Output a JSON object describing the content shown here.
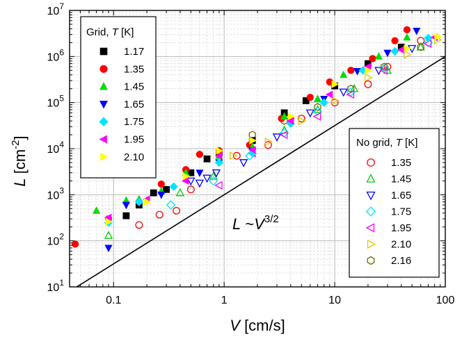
{
  "chart_data": {
    "type": "scatter",
    "x_scale": "log",
    "y_scale": "log",
    "xlim": [
      0.04,
      100
    ],
    "ylim": [
      10,
      10000000
    ],
    "grid": true,
    "x_tick_labels": [
      {
        "value": 0.1,
        "label": "0.1"
      },
      {
        "value": 1,
        "label": "1"
      },
      {
        "value": 10,
        "label": "10"
      },
      {
        "value": 100,
        "label": "100"
      }
    ],
    "y_tick_labels": [
      {
        "value": 10,
        "base": "10",
        "exp": "1"
      },
      {
        "value": 100,
        "base": "10",
        "exp": "2"
      },
      {
        "value": 1000,
        "base": "10",
        "exp": "3"
      },
      {
        "value": 10000,
        "base": "10",
        "exp": "4"
      },
      {
        "value": 100000,
        "base": "10",
        "exp": "5"
      },
      {
        "value": 1000000,
        "base": "10",
        "exp": "6"
      },
      {
        "value": 10000000,
        "base": "10",
        "exp": "7"
      }
    ],
    "xlabel": {
      "var": "V",
      "unit": " [cm/s]"
    },
    "ylabel": {
      "var": "L",
      "unit_pre": " [cm",
      "sup": "-2",
      "unit_post": "]"
    },
    "annotation": {
      "text_var": "L",
      "text_mid": " ~",
      "text_var2": "V",
      "sup": "3/2",
      "x": 1.2,
      "y": 320
    },
    "reference_line": {
      "name": "L ~ V^3/2",
      "x": [
        0.04,
        100
      ],
      "y": [
        8,
        1000000
      ]
    },
    "legend_grid": {
      "title_pre": "Grid, ",
      "title_var": "T",
      "title_post": " [K]",
      "position": "top-left",
      "entries": [
        {
          "label": "1.17",
          "marker": "square",
          "color": "#000000",
          "filled": true
        },
        {
          "label": "1.35",
          "marker": "circle",
          "color": "#ff0000",
          "filled": true
        },
        {
          "label": "1.45",
          "marker": "triangle-up",
          "color": "#00dd00",
          "filled": true
        },
        {
          "label": "1.65",
          "marker": "triangle-down",
          "color": "#0000ff",
          "filled": true
        },
        {
          "label": "1.75",
          "marker": "diamond",
          "color": "#00e5ff",
          "filled": true
        },
        {
          "label": "1.95",
          "marker": "triangle-left",
          "color": "#ff00ff",
          "filled": true
        },
        {
          "label": "2.10",
          "marker": "triangle-right",
          "color": "#ffff00",
          "filled": true
        }
      ]
    },
    "legend_nogrid": {
      "title_pre": "No grid, ",
      "title_var": "T",
      "title_post": " [K]",
      "position": "right",
      "entries": [
        {
          "label": "1.35",
          "marker": "circle",
          "color": "#ff0000",
          "filled": false
        },
        {
          "label": "1.45",
          "marker": "triangle-up",
          "color": "#00cc00",
          "filled": false
        },
        {
          "label": "1.65",
          "marker": "triangle-down",
          "color": "#0000ff",
          "filled": false
        },
        {
          "label": "1.75",
          "marker": "diamond",
          "color": "#00e5ff",
          "filled": false
        },
        {
          "label": "1.95",
          "marker": "triangle-left",
          "color": "#ff00ff",
          "filled": false
        },
        {
          "label": "2.10",
          "marker": "triangle-right",
          "color": "#e6c800",
          "filled": false
        },
        {
          "label": "2.16",
          "marker": "hexagon",
          "color": "#6b6b00",
          "filled": false
        }
      ]
    },
    "series": [
      {
        "name": "Grid 1.17",
        "group": "grid",
        "points": [
          [
            0.13,
            350
          ],
          [
            0.17,
            600
          ],
          [
            0.23,
            1100
          ],
          [
            0.3,
            1300
          ],
          [
            0.5,
            3000
          ],
          [
            0.7,
            6000
          ],
          [
            0.9,
            8000
          ],
          [
            1.8,
            15000
          ],
          [
            3.5,
            60000
          ],
          [
            5.5,
            110000
          ],
          [
            10,
            230000
          ],
          [
            20,
            700000
          ],
          [
            40,
            1600000
          ]
        ]
      },
      {
        "name": "Grid 1.35",
        "group": "grid",
        "points": [
          [
            0.045,
            85
          ],
          [
            0.09,
            300
          ],
          [
            0.17,
            700
          ],
          [
            0.27,
            1700
          ],
          [
            0.45,
            3500
          ],
          [
            0.6,
            7500
          ],
          [
            0.9,
            9000
          ],
          [
            1.7,
            12000
          ],
          [
            3.3,
            45000
          ],
          [
            6,
            130000
          ],
          [
            9,
            280000
          ],
          [
            14,
            500000
          ],
          [
            22,
            900000
          ],
          [
            35,
            2200000
          ],
          [
            45,
            3800000
          ]
        ]
      },
      {
        "name": "Grid 1.45",
        "group": "grid",
        "points": [
          [
            0.07,
            450
          ],
          [
            0.13,
            750
          ],
          [
            0.17,
            800
          ],
          [
            0.27,
            1200
          ],
          [
            0.45,
            3000
          ],
          [
            0.9,
            7000
          ],
          [
            1.8,
            11000
          ],
          [
            3.5,
            50000
          ],
          [
            7,
            120000
          ],
          [
            12,
            400000
          ],
          [
            25,
            1000000
          ],
          [
            45,
            2600000
          ]
        ]
      },
      {
        "name": "Grid 1.65",
        "group": "grid",
        "points": [
          [
            0.09,
            70
          ],
          [
            0.13,
            600
          ],
          [
            0.27,
            1000
          ],
          [
            0.6,
            3000
          ],
          [
            0.9,
            5000
          ],
          [
            1.8,
            9000
          ],
          [
            4,
            40000
          ],
          [
            8,
            120000
          ],
          [
            16,
            480000
          ],
          [
            30,
            1200000
          ],
          [
            55,
            3600000
          ]
        ]
      },
      {
        "name": "Grid 1.75",
        "group": "grid",
        "points": [
          [
            0.09,
            250
          ],
          [
            0.17,
            700
          ],
          [
            0.35,
            1500
          ],
          [
            0.9,
            5000
          ],
          [
            1.8,
            8000
          ],
          [
            4,
            35000
          ],
          [
            8,
            100000
          ],
          [
            18,
            500000
          ],
          [
            35,
            1300000
          ],
          [
            70,
            2500000
          ]
        ]
      },
      {
        "name": "Grid 1.95",
        "group": "grid",
        "points": [
          [
            0.09,
            320
          ],
          [
            0.2,
            800
          ],
          [
            0.45,
            2000
          ],
          [
            0.9,
            7000
          ],
          [
            1.8,
            9500
          ],
          [
            4,
            40000
          ],
          [
            9,
            150000
          ],
          [
            20,
            600000
          ],
          [
            40,
            1400000
          ],
          [
            80,
            2600000
          ]
        ]
      },
      {
        "name": "Grid 2.10",
        "group": "grid",
        "points": [
          [
            0.09,
            260
          ],
          [
            0.2,
            700
          ],
          [
            0.45,
            2500
          ],
          [
            0.9,
            9000
          ],
          [
            1.8,
            15000
          ],
          [
            4,
            50000
          ],
          [
            10,
            250000
          ],
          [
            20,
            500000
          ],
          [
            45,
            1500000
          ],
          [
            85,
            2700000
          ]
        ]
      },
      {
        "name": "No grid 1.35",
        "group": "nogrid",
        "points": [
          [
            0.17,
            220
          ],
          [
            0.26,
            370
          ],
          [
            0.37,
            450
          ],
          [
            0.5,
            1300
          ],
          [
            1.3,
            7000
          ],
          [
            2.5,
            12000
          ],
          [
            5,
            45000
          ],
          [
            10,
            100000
          ],
          [
            20,
            250000
          ],
          [
            30,
            600000
          ],
          [
            60,
            2200000
          ]
        ]
      },
      {
        "name": "No grid 1.45",
        "group": "nogrid",
        "points": [
          [
            0.09,
            130
          ],
          [
            0.4,
            1100
          ],
          [
            0.8,
            2500
          ],
          [
            1.8,
            9000
          ],
          [
            3.5,
            25000
          ],
          [
            7,
            70000
          ],
          [
            15,
            200000
          ],
          [
            30,
            500000
          ],
          [
            60,
            1600000
          ]
        ]
      },
      {
        "name": "No grid 1.65",
        "group": "nogrid",
        "points": [
          [
            0.5,
            2000
          ],
          [
            0.6,
            1800
          ],
          [
            0.7,
            2300
          ],
          [
            0.85,
            3000
          ],
          [
            1.5,
            5000
          ],
          [
            3,
            18000
          ],
          [
            6,
            60000
          ],
          [
            12,
            170000
          ],
          [
            25,
            500000
          ],
          [
            50,
            1500000
          ]
        ]
      },
      {
        "name": "No grid 1.75",
        "group": "nogrid",
        "points": [
          [
            0.33,
            600
          ],
          [
            0.8,
            2000
          ],
          [
            1.7,
            7000
          ],
          [
            3.5,
            22000
          ],
          [
            7,
            65000
          ],
          [
            14,
            170000
          ],
          [
            28,
            550000
          ],
          [
            70,
            2000000
          ]
        ]
      },
      {
        "name": "No grid 1.95",
        "group": "nogrid",
        "points": [
          [
            0.9,
            1600
          ],
          [
            1.8,
            8000
          ],
          [
            3.5,
            20000
          ],
          [
            7,
            50000
          ],
          [
            14,
            150000
          ],
          [
            28,
            500000
          ],
          [
            70,
            1900000
          ]
        ]
      },
      {
        "name": "No grid 2.10",
        "group": "nogrid",
        "points": [
          [
            1.2,
            7000
          ],
          [
            2.5,
            14000
          ],
          [
            5,
            40000
          ],
          [
            10,
            110000
          ],
          [
            20,
            350000
          ],
          [
            45,
            1100000
          ],
          [
            85,
            2300000
          ]
        ]
      },
      {
        "name": "No grid 2.16",
        "group": "nogrid",
        "points": [
          [
            1.8,
            20000
          ],
          [
            3.5,
            40000
          ],
          [
            7,
            80000
          ],
          [
            14,
            200000
          ],
          [
            28,
            600000
          ],
          [
            60,
            1600000
          ]
        ]
      }
    ]
  }
}
